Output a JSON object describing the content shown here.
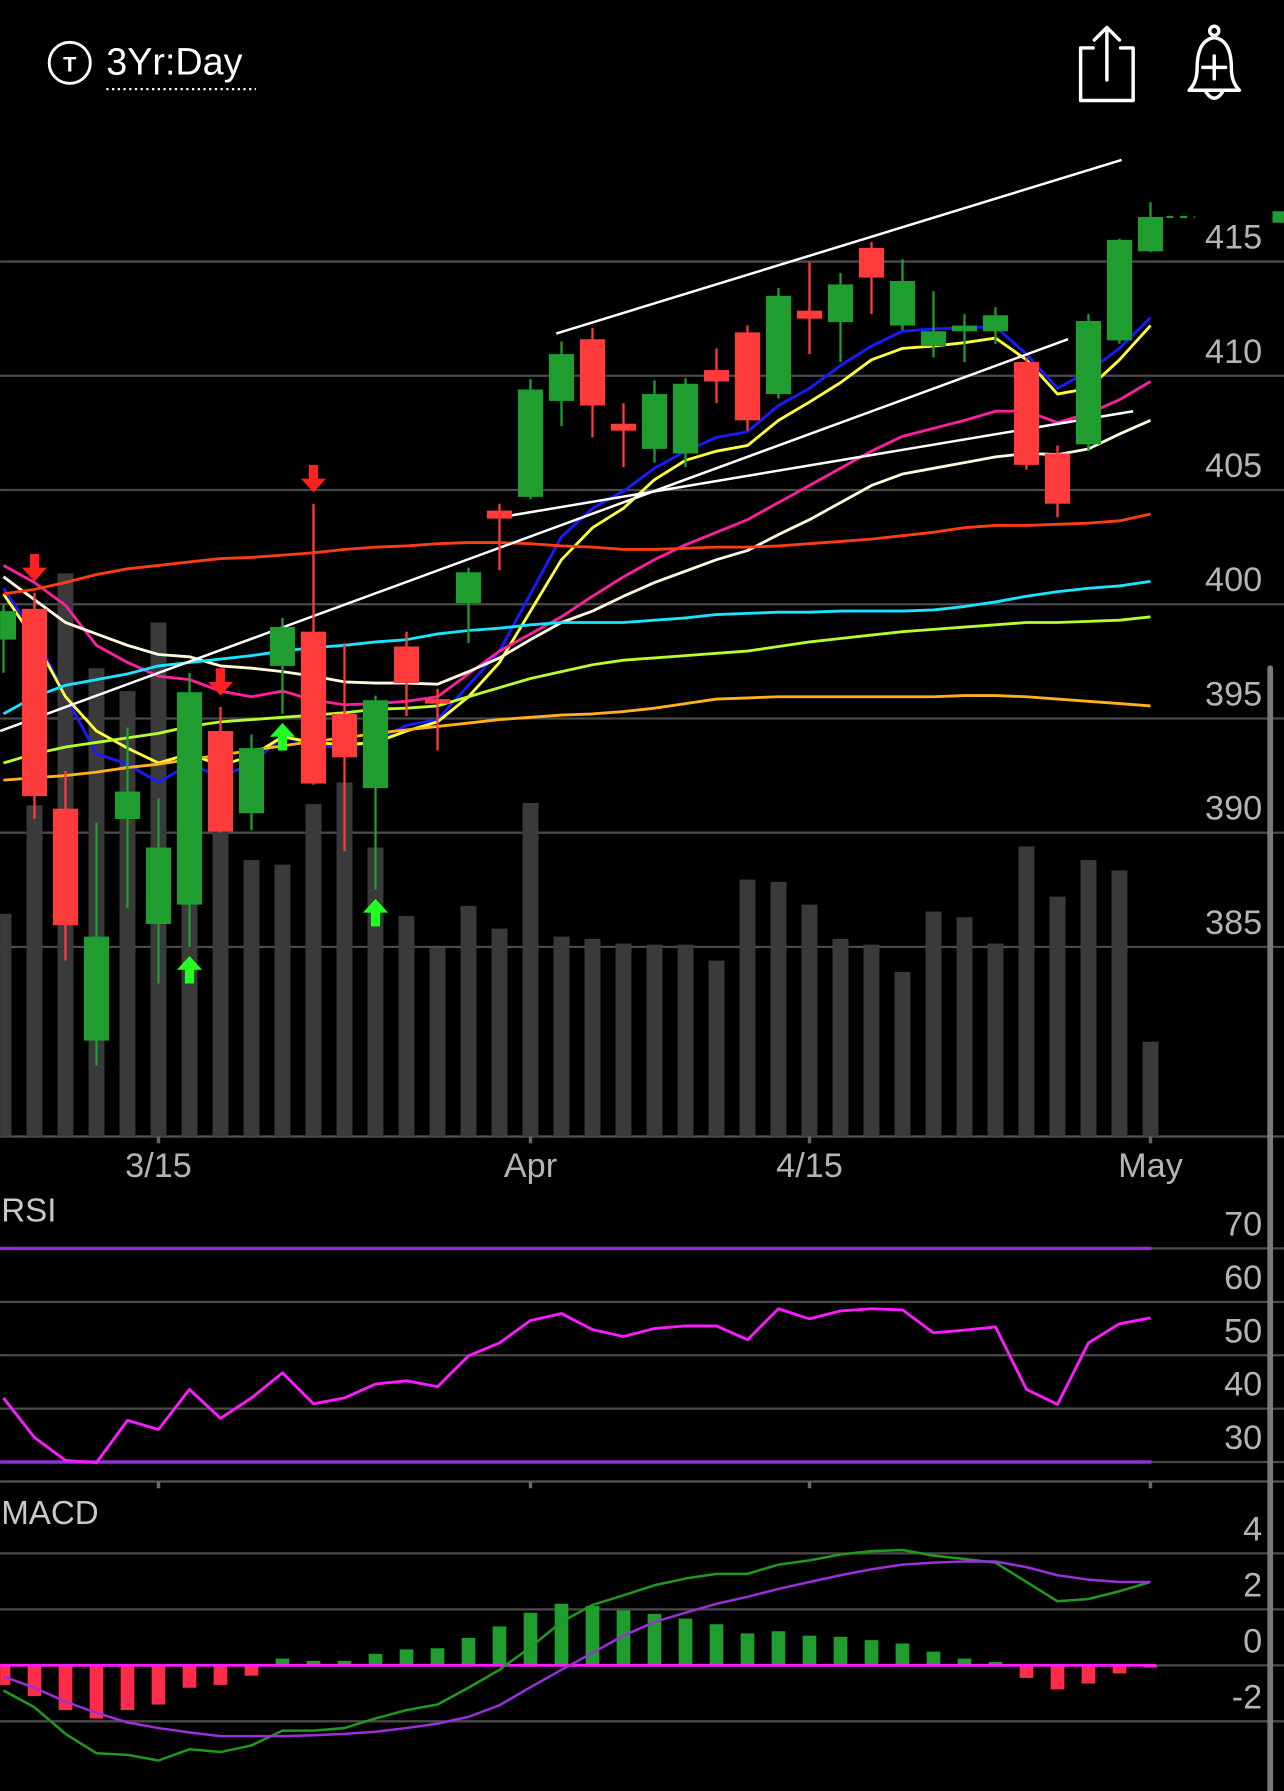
{
  "header": {
    "icon": "T",
    "timeframe": "3Yr:Day"
  },
  "chart_data": [
    {
      "type": "candlestick",
      "categories": [
        null,
        null,
        null,
        null,
        null,
        "3/15",
        null,
        null,
        null,
        null,
        null,
        null,
        null,
        null,
        null,
        null,
        null,
        "Apr",
        null,
        null,
        null,
        null,
        null,
        null,
        null,
        null,
        "4/15",
        null,
        null,
        null,
        null,
        null,
        null,
        null,
        null,
        null,
        null,
        "May"
      ],
      "open": [
        398.45,
        399.8,
        391.05,
        380.9,
        390.6,
        386.0,
        386.85,
        394.45,
        390.85,
        397.3,
        398.8,
        395.2,
        391.95,
        398.15,
        395.85,
        400.05,
        404.1,
        404.7,
        408.9,
        411.6,
        407.9,
        406.8,
        406.6,
        410.25,
        411.9,
        409.2,
        412.85,
        412.35,
        415.6,
        412.2,
        411.3,
        411.95,
        411.95,
        410.6,
        406.6,
        407.0,
        411.55,
        415.45
      ],
      "high": [
        400.0,
        400.5,
        392.7,
        390.45,
        394.6,
        391.5,
        397.0,
        395.5,
        394.3,
        399.4,
        404.4,
        398.3,
        396.0,
        398.8,
        396.3,
        401.6,
        404.4,
        409.85,
        411.5,
        412.1,
        408.8,
        409.8,
        409.9,
        411.2,
        412.2,
        413.85,
        415.0,
        414.5,
        415.85,
        415.1,
        413.7,
        412.7,
        413.0,
        410.8,
        406.95,
        412.7,
        416.0,
        417.6
      ],
      "low": [
        397.0,
        390.6,
        384.4,
        379.8,
        386.7,
        383.4,
        385.0,
        390.0,
        390.1,
        395.2,
        392.1,
        389.2,
        387.5,
        395.1,
        393.6,
        398.3,
        401.5,
        404.6,
        407.8,
        407.3,
        406.0,
        406.2,
        406.0,
        408.8,
        407.6,
        409.0,
        410.95,
        410.6,
        412.7,
        412.0,
        410.8,
        410.6,
        411.4,
        405.9,
        403.8,
        406.7,
        411.4,
        415.4
      ],
      "close": [
        399.7,
        391.6,
        385.95,
        385.45,
        391.8,
        389.35,
        396.15,
        390.05,
        393.7,
        399.0,
        392.15,
        393.3,
        395.8,
        396.55,
        395.65,
        401.4,
        403.75,
        409.4,
        410.95,
        408.7,
        407.6,
        409.2,
        409.65,
        409.75,
        408.05,
        413.5,
        412.5,
        414.0,
        414.3,
        414.15,
        411.95,
        412.2,
        412.65,
        406.1,
        404.4,
        412.4,
        415.95,
        416.95
      ],
      "volume": [
        195,
        290,
        493,
        410,
        390,
        450,
        385,
        355,
        242,
        238,
        291,
        310,
        253,
        193,
        165,
        202,
        182,
        292,
        175,
        173,
        169,
        168,
        168,
        154,
        225,
        223,
        203,
        173,
        168,
        144,
        197,
        192,
        169,
        254,
        210,
        242,
        233,
        83
      ],
      "up_color": "#1f9e2f",
      "down_color": "#ff3b3b",
      "volume_color": "#3a3a3a",
      "series": [
        {
          "color": "#1a1aff",
          "values": [
            400.7,
            398.7,
            396,
            393.45,
            393,
            392.2,
            393,
            392.45,
            393,
            394.2,
            393.85,
            393.7,
            394,
            394.7,
            394.95,
            396.45,
            397.95,
            400.45,
            402.95,
            404.2,
            404.95,
            405.95,
            406.7,
            407.3,
            407.55,
            408.7,
            409.45,
            410.45,
            411.3,
            411.95,
            412.05,
            412.1,
            412.15,
            410.95,
            409.45,
            410.2,
            411.2,
            412.55
          ]
        },
        {
          "color": "#ffff3a",
          "values": [
            400.45,
            398.45,
            395.95,
            394.45,
            393.7,
            393.05,
            393.45,
            392.95,
            393.35,
            394.2,
            393.95,
            393.85,
            393.95,
            394.45,
            394.85,
            395.95,
            397.45,
            399.7,
            401.95,
            403.35,
            404.2,
            405.45,
            406.3,
            406.7,
            406.95,
            408.05,
            408.85,
            409.7,
            410.7,
            411.2,
            411.3,
            411.45,
            411.65,
            410.7,
            409.2,
            409.45,
            410.7,
            412.2
          ]
        },
        {
          "color": "#ff1f9e",
          "values": [
            401.7,
            400.95,
            399.95,
            398.2,
            397.45,
            396.85,
            396.7,
            396.2,
            395.95,
            396.2,
            395.8,
            395.6,
            395.65,
            395.75,
            395.95,
            396.95,
            397.95,
            398.7,
            399.45,
            400.35,
            401.2,
            401.95,
            402.6,
            403.15,
            403.7,
            404.45,
            405.2,
            405.95,
            406.7,
            407.35,
            407.7,
            408.05,
            408.45,
            408.45,
            407.95,
            408.35,
            408.95,
            409.75
          ]
        },
        {
          "color": "#fff8dc",
          "values": [
            401.2,
            400.2,
            399.2,
            398.7,
            398.2,
            397.8,
            397.7,
            397.3,
            397.2,
            397.05,
            396.85,
            396.6,
            396.55,
            396.55,
            396.5,
            397.05,
            397.65,
            398.45,
            399.2,
            399.7,
            400.35,
            400.95,
            401.45,
            401.95,
            402.35,
            403.05,
            403.7,
            404.45,
            405.2,
            405.7,
            405.95,
            406.2,
            406.45,
            406.6,
            406.55,
            406.8,
            407.45,
            408.05
          ]
        },
        {
          "color": "#ff3c14",
          "values": [
            400.45,
            400.65,
            400.95,
            401.3,
            401.55,
            401.7,
            401.85,
            402,
            402.05,
            402.15,
            402.25,
            402.4,
            402.5,
            402.55,
            402.65,
            402.7,
            402.7,
            402.65,
            402.55,
            402.5,
            402.4,
            402.4,
            402.45,
            402.5,
            402.5,
            402.55,
            402.65,
            402.75,
            402.85,
            403,
            403.15,
            403.35,
            403.45,
            403.45,
            403.5,
            403.55,
            403.65,
            403.95
          ]
        },
        {
          "color": "#1ae4ff",
          "values": [
            395.2,
            395.95,
            396.45,
            396.7,
            396.95,
            397.3,
            397.45,
            397.6,
            397.75,
            397.95,
            398.1,
            398.2,
            398.35,
            398.45,
            398.7,
            398.85,
            398.95,
            399.1,
            399.2,
            399.2,
            399.2,
            399.3,
            399.4,
            399.55,
            399.6,
            399.65,
            399.65,
            399.7,
            399.7,
            399.7,
            399.75,
            399.9,
            400.1,
            400.35,
            400.55,
            400.7,
            400.8,
            401.0
          ]
        },
        {
          "color": "#b6ff2c",
          "values": [
            393.05,
            393.45,
            393.75,
            393.95,
            394.15,
            394.35,
            394.65,
            394.85,
            394.95,
            395.05,
            395.15,
            395.25,
            395.4,
            395.45,
            395.55,
            395.95,
            396.35,
            396.75,
            397.05,
            397.35,
            397.55,
            397.65,
            397.75,
            397.85,
            397.95,
            398.15,
            398.35,
            398.5,
            398.65,
            398.8,
            398.9,
            399,
            399.1,
            399.2,
            399.2,
            399.25,
            399.3,
            399.45
          ]
        },
        {
          "color": "#ffb21a",
          "values": [
            392.3,
            392.4,
            392.5,
            392.65,
            392.85,
            393,
            393.2,
            393.4,
            393.6,
            393.8,
            394,
            394.15,
            394.35,
            394.5,
            394.65,
            394.8,
            394.95,
            395.05,
            395.15,
            395.2,
            395.3,
            395.45,
            395.65,
            395.85,
            395.9,
            395.95,
            395.95,
            395.95,
            395.95,
            395.95,
            395.95,
            396,
            396,
            395.95,
            395.85,
            395.75,
            395.65,
            395.55
          ]
        }
      ],
      "trendline_color": "#ffffff",
      "trendlines": [
        {
          "x": [
            17.83,
            36.07
          ],
          "y": [
            411.85,
            419.45
          ]
        },
        {
          "x": [
            -0.11,
            34.34
          ],
          "y": [
            394.45,
            411.6
          ]
        },
        {
          "x": [
            15.99,
            36.44
          ],
          "y": [
            403.8,
            408.45
          ]
        }
      ],
      "sell_signals": [
        1,
        7,
        10
      ],
      "sell_color": "#ff2020",
      "buy_signals": [
        6,
        9,
        12
      ],
      "buy_color": "#22ff22",
      "ylim": [
        376.7,
        420.45
      ],
      "yticks": [
        415,
        410,
        405,
        400,
        395,
        390,
        385
      ],
      "grid": true
    },
    {
      "type": "line",
      "title": "RSI",
      "series": [
        {
          "color": "#ff1aff",
          "values": [
            42,
            34.6,
            30.3,
            29.9,
            37.8,
            36.1,
            43.6,
            38.2,
            42,
            46.7,
            40.9,
            42,
            44.6,
            45.2,
            44.1,
            49.9,
            52.3,
            56.5,
            57.8,
            54.8,
            53.5,
            55,
            55.5,
            55.5,
            52.9,
            58.7,
            56.8,
            58.3,
            58.7,
            58.5,
            54.2,
            54.7,
            55.3,
            43.6,
            40.8,
            52.3,
            55.9,
            57
          ]
        }
      ],
      "levels": [
        70,
        30
      ],
      "level_color": "#8f2fd6",
      "ylim": [
        26.36,
        80.27
      ],
      "yticks": [
        70,
        60,
        50,
        40,
        30
      ],
      "grid": true
    },
    {
      "type": "macd",
      "title": "MACD",
      "histogram": [
        -0.7,
        -1.1,
        -1.6,
        -1.9,
        -1.6,
        -1.4,
        -0.8,
        -0.7,
        -0.37,
        0.24,
        0.16,
        0.16,
        0.41,
        0.57,
        0.61,
        0.98,
        1.39,
        1.88,
        2.2,
        2.12,
        1.96,
        1.84,
        1.67,
        1.47,
        1.14,
        1.22,
        1.06,
        1.02,
        0.9,
        0.78,
        0.49,
        0.24,
        0.12,
        -0.45,
        -0.86,
        -0.65,
        -0.29,
        -0.08
      ],
      "up_color": "#1f9e2f",
      "down_color": "#ff2c4a",
      "zero_color": "#ff1aff",
      "series": [
        {
          "color": "#1f9a1f",
          "values": [
            -0.9,
            -1.5,
            -2.45,
            -3.14,
            -3.2,
            -3.4,
            -3.0,
            -3.1,
            -2.86,
            -2.33,
            -2.33,
            -2.24,
            -1.9,
            -1.6,
            -1.4,
            -0.8,
            -0.16,
            0.65,
            1.55,
            2.16,
            2.5,
            2.86,
            3.1,
            3.27,
            3.27,
            3.6,
            3.75,
            3.96,
            4.08,
            4.12,
            3.92,
            3.8,
            3.67,
            2.98,
            2.29,
            2.37,
            2.65,
            2.98
          ]
        },
        {
          "color": "#9a30d8",
          "values": [
            -0.4,
            -0.8,
            -1.3,
            -1.7,
            -2.04,
            -2.24,
            -2.4,
            -2.53,
            -2.53,
            -2.53,
            -2.5,
            -2.45,
            -2.37,
            -2.24,
            -2.08,
            -1.84,
            -1.43,
            -0.78,
            -0.16,
            0.45,
            1.06,
            1.55,
            1.88,
            2.2,
            2.45,
            2.73,
            2.98,
            3.22,
            3.43,
            3.6,
            3.67,
            3.71,
            3.71,
            3.51,
            3.22,
            3.06,
            2.98,
            2.98
          ]
        }
      ],
      "ylim": [
        -4.49,
        6.04
      ],
      "yticks": [
        4,
        2,
        0,
        -2
      ],
      "grid": true
    }
  ]
}
